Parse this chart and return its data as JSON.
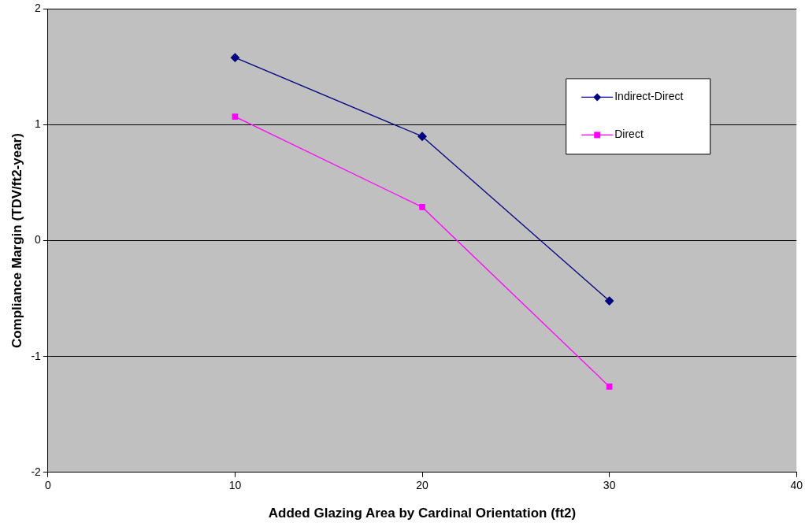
{
  "chart_data": {
    "type": "line",
    "xlabel": "Added Glazing Area by Cardinal Orientation (ft2)",
    "ylabel": "Compliance Margin (TDV/ft2-year)",
    "x": [
      10,
      20,
      30
    ],
    "series": [
      {
        "name": "Indirect-Direct",
        "color": "#000080",
        "values": [
          1.58,
          0.9,
          -0.52
        ],
        "marker": "diamond"
      },
      {
        "name": "Direct",
        "color": "#ff00ff",
        "values": [
          1.07,
          0.29,
          -1.26
        ],
        "marker": "square"
      }
    ],
    "xlim": [
      0,
      40
    ],
    "xticks": [
      0,
      10,
      20,
      30,
      40
    ],
    "ylim": [
      -2,
      2
    ],
    "yticks": [
      -2,
      -1,
      0,
      1,
      2
    ],
    "grid": "y",
    "legend": "top right",
    "line_style": "solid"
  }
}
